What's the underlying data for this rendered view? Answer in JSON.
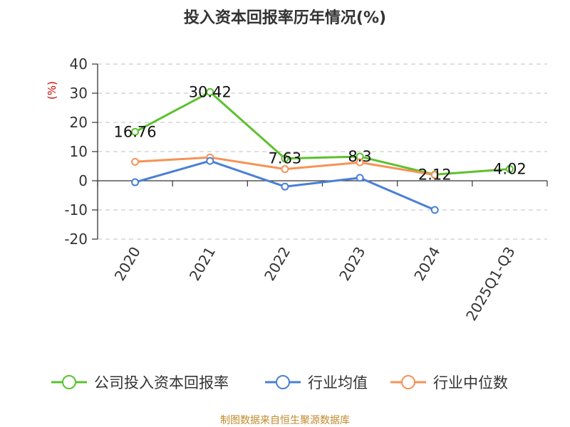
{
  "chart_data": {
    "type": "line",
    "title": "投入资本回报率历年情况(%)",
    "ylabel": "(%)",
    "categories": [
      "2020",
      "2021",
      "2022",
      "2023",
      "2024",
      "2025Q1-Q3"
    ],
    "ylim": [
      -20,
      40
    ],
    "yticks": [
      40,
      30,
      20,
      10,
      0,
      -10,
      -20
    ],
    "grid": true,
    "legend_position": "bottom",
    "series": [
      {
        "name": "公司投入资本回报率",
        "color": "#5cc12e",
        "values": [
          16.76,
          30.42,
          7.63,
          8.3,
          2.12,
          4.02
        ],
        "labels": [
          "16.76",
          "30.42",
          "7.63",
          "8.3",
          "2.12",
          "4.02"
        ]
      },
      {
        "name": "行业均值",
        "color": "#4a7fd6",
        "values": [
          -0.5,
          6.8,
          -2.0,
          1.0,
          -10.0,
          null
        ]
      },
      {
        "name": "行业中位数",
        "color": "#f79256",
        "values": [
          6.5,
          8.0,
          4.0,
          6.3,
          2.0,
          null
        ]
      }
    ],
    "source": "制图数据来自恒生聚源数据库"
  }
}
